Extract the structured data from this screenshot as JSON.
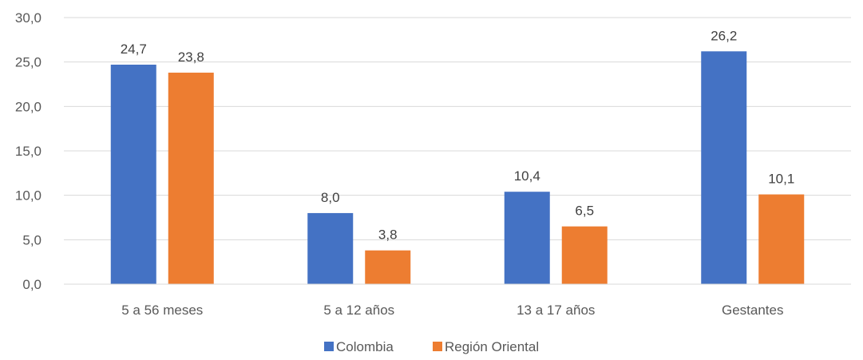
{
  "chart_data": {
    "type": "bar",
    "categories": [
      "5 a 56 meses",
      "5 a 12 años",
      "13 a 17 años",
      "Gestantes"
    ],
    "series": [
      {
        "name": "Colombia",
        "values": [
          24.7,
          8.0,
          10.4,
          26.2
        ],
        "labels": [
          "24,7",
          "8,0",
          "10,4",
          "26,2"
        ],
        "color": "#4472C4"
      },
      {
        "name": "Región Oriental",
        "values": [
          23.8,
          3.8,
          6.5,
          10.1
        ],
        "labels": [
          "23,8",
          "3,8",
          "6,5",
          "10,1"
        ],
        "color": "#ED7D31"
      }
    ],
    "yticks": [
      0,
      5,
      10,
      15,
      20,
      25,
      30
    ],
    "ytick_labels": [
      "0,0",
      "5,0",
      "10,0",
      "15,0",
      "20,0",
      "25,0",
      "30,0"
    ],
    "ylim": [
      0,
      30
    ],
    "grid": true,
    "legend": "bottom-center",
    "gridline_color": "#D9D9D9"
  }
}
